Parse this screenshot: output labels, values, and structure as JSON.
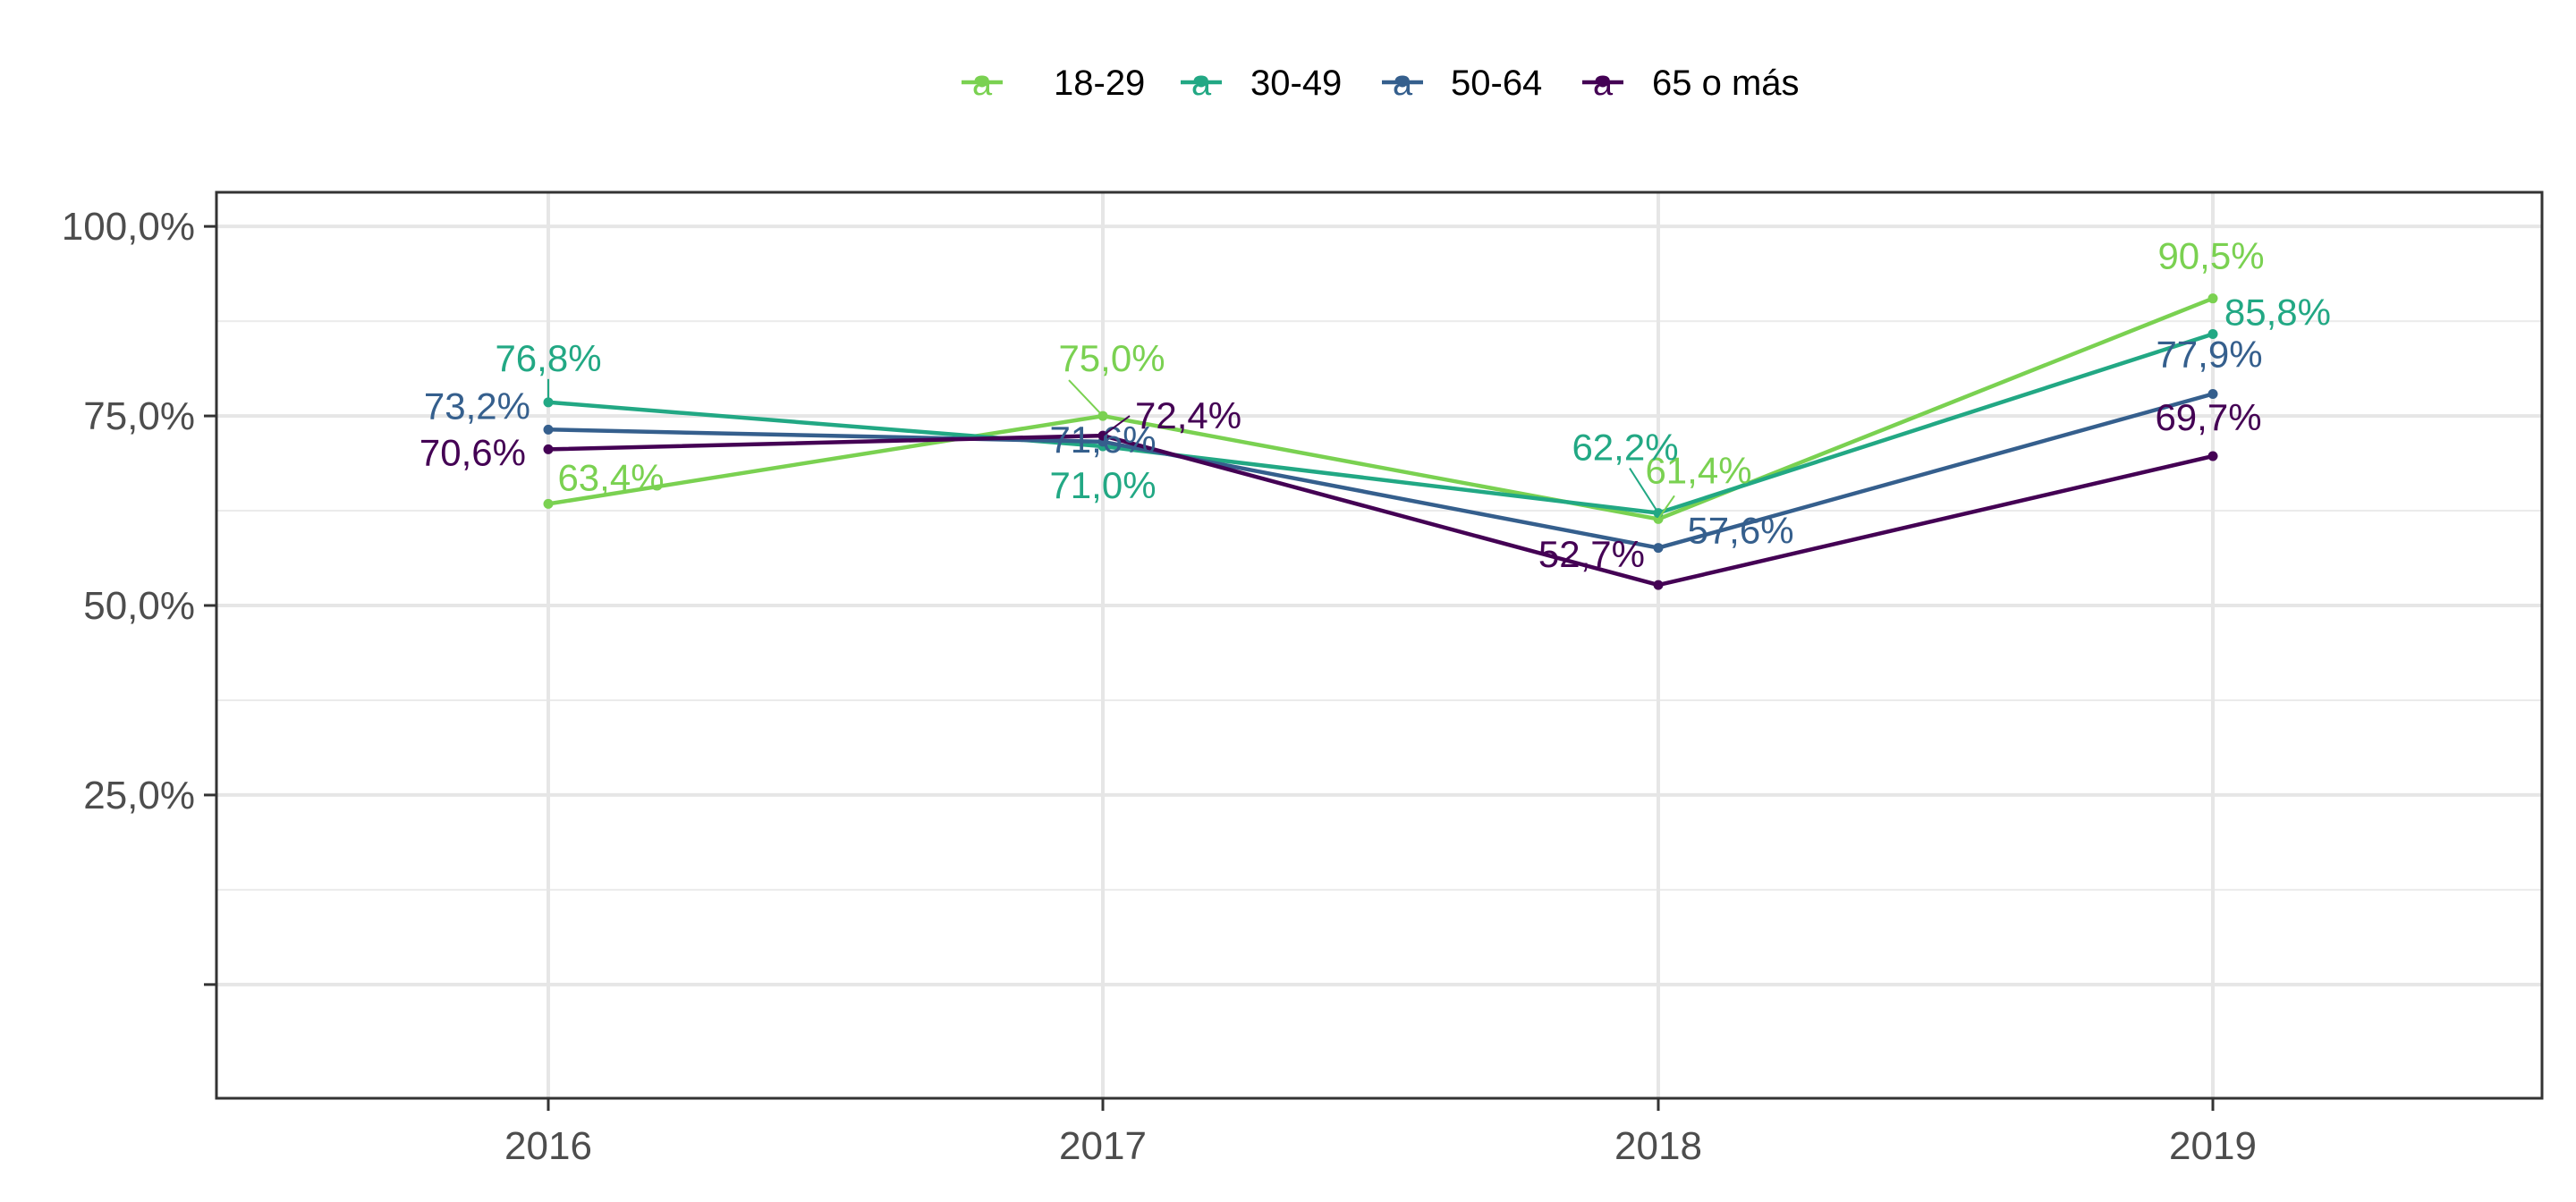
{
  "chart_data": {
    "type": "line",
    "categories": [
      "2016",
      "2017",
      "2018",
      "2019"
    ],
    "series": [
      {
        "name": "18-29",
        "color": "#7AD151",
        "values": [
          63.4,
          75.0,
          61.4,
          90.5
        ],
        "labels": [
          "63,4%",
          "75,0%",
          "61,4%",
          "90,5%"
        ]
      },
      {
        "name": "30-49",
        "color": "#22A884",
        "values": [
          76.8,
          71.0,
          62.2,
          85.8
        ],
        "labels": [
          "76,8%",
          "71,0%",
          "62,2%",
          "85,8%"
        ]
      },
      {
        "name": "50-64",
        "color": "#355F8D",
        "values": [
          73.2,
          71.6,
          57.6,
          77.9
        ],
        "labels": [
          "73,2%",
          "71,6%",
          "57,6%",
          "77,9%"
        ]
      },
      {
        "name": "65 o más",
        "color": "#440154",
        "values": [
          70.6,
          72.4,
          52.7,
          69.7
        ],
        "labels": [
          "70,6%",
          "72,4%",
          "52,7%",
          "69,7%"
        ]
      }
    ],
    "y_ticks": [
      0,
      25,
      50,
      75,
      100
    ],
    "y_tick_labels": [
      "",
      "25,0%",
      "50,0%",
      "75,0%",
      "100,0%"
    ],
    "ylim": [
      0,
      100
    ],
    "xlabel": "",
    "ylabel": "",
    "title": "",
    "legend": {
      "position": "top",
      "key_glyph": "a"
    },
    "grid": true
  }
}
